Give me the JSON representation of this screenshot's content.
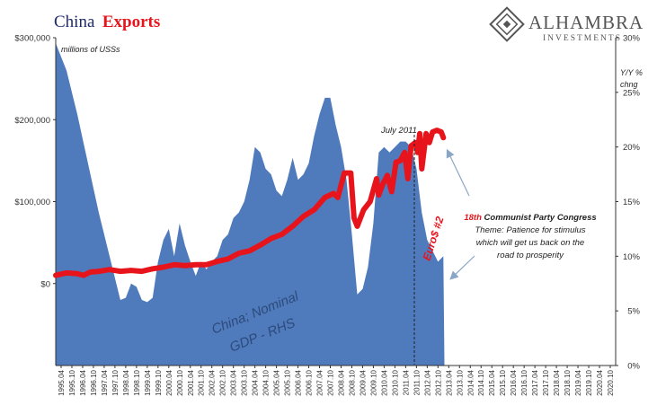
{
  "title": {
    "part1": "China",
    "part2": "Exports"
  },
  "logo": {
    "name": "ALHAMBRA",
    "sub": "INVESTMENTS"
  },
  "colors": {
    "exports": "#e8141c",
    "gdp": "#4f7bbd",
    "title_dark": "#1f2a6b"
  },
  "chart_data": {
    "type": "line+area",
    "left_axis": {
      "label": "millions of USSs",
      "ticks": [
        "$300,000",
        "$200,000",
        "$100,000",
        "$0"
      ],
      "tick_values": [
        300000,
        200000,
        100000,
        0
      ],
      "range": [
        -100000,
        300000
      ]
    },
    "right_axis": {
      "label_line1": "Y/Y %",
      "label_line2": "chng",
      "ticks": [
        "30%",
        "25%",
        "20%",
        "15%",
        "10%",
        "5%",
        "0%"
      ],
      "tick_values": [
        30,
        25,
        20,
        15,
        10,
        5,
        0
      ],
      "range": [
        0,
        30
      ]
    },
    "x_range": [
      1995.0,
      2021.0
    ],
    "x_ticks": [
      "1995.04",
      "1995.10",
      "1996.04",
      "1996.10",
      "1997.04",
      "1997.10",
      "1998.04",
      "1998.10",
      "1999.04",
      "1999.10",
      "2000.04",
      "2000.10",
      "2001.04",
      "2001.10",
      "2002.04",
      "2002.10",
      "2003.04",
      "2003.10",
      "2004.04",
      "2004.10",
      "2005.04",
      "2005.10",
      "2006.04",
      "2006.10",
      "2007.04",
      "2007.10",
      "2008.04",
      "2008.10",
      "2009.04",
      "2009.10",
      "2010.04",
      "2010.10",
      "2011.04",
      "2011.10",
      "2012.04",
      "2012.10",
      "2013.04",
      "2013.10",
      "2014.04",
      "2014.10",
      "2015.04",
      "2015.10",
      "2016.04",
      "2016.10",
      "2017.04",
      "2017.10",
      "2018.04",
      "2018.10",
      "2019.04",
      "2019.10",
      "2020.04",
      "2020.10"
    ],
    "series": [
      {
        "name": "China Exports",
        "axis": "left",
        "x": [
          1995.0,
          1995.5,
          1996.0,
          1996.3,
          1996.6,
          1997.0,
          1997.5,
          1998.0,
          1998.5,
          1999.0,
          1999.5,
          2000.0,
          2000.5,
          2001.0,
          2001.5,
          2002.0,
          2002.5,
          2003.0,
          2003.5,
          2004.0,
          2004.5,
          2005.0,
          2005.5,
          2006.0,
          2006.5,
          2007.0,
          2007.5,
          2007.9,
          2008.1,
          2008.4,
          2008.7,
          2008.85,
          2009.0,
          2009.3,
          2009.6,
          2009.9,
          2010.0,
          2010.2,
          2010.4,
          2010.6,
          2010.8,
          2011.0,
          2011.2,
          2011.35,
          2011.5,
          2011.7,
          2011.8,
          2011.9,
          2012.0,
          2012.2,
          2012.35,
          2012.5,
          2012.7,
          2012.9,
          2013.0
        ],
        "values": [
          10000,
          13000,
          12000,
          10000,
          14000,
          15000,
          17000,
          15000,
          16000,
          15000,
          18000,
          20000,
          23000,
          22000,
          23000,
          23000,
          27000,
          30000,
          37000,
          40000,
          47000,
          55000,
          60000,
          70000,
          82000,
          90000,
          105000,
          110000,
          105000,
          135000,
          135000,
          80000,
          70000,
          90000,
          100000,
          128000,
          108000,
          122000,
          132000,
          112000,
          148000,
          150000,
          160000,
          128000,
          168000,
          172000,
          160000,
          183000,
          140000,
          183000,
          172000,
          185000,
          187000,
          185000,
          178000
        ]
      },
      {
        "name": "China; Nominal GDP - RHS",
        "axis": "right",
        "x": [
          1995.0,
          1995.5,
          1996.0,
          1996.5,
          1997.0,
          1997.5,
          1998.0,
          1998.25,
          1998.5,
          1998.75,
          1999.0,
          1999.25,
          1999.5,
          1999.75,
          2000.0,
          2000.25,
          2000.5,
          2000.75,
          2001.0,
          2001.25,
          2001.5,
          2001.75,
          2002.0,
          2002.25,
          2002.5,
          2002.75,
          2003.0,
          2003.25,
          2003.5,
          2003.75,
          2004.0,
          2004.25,
          2004.5,
          2004.75,
          2005.0,
          2005.25,
          2005.5,
          2005.75,
          2006.0,
          2006.25,
          2006.5,
          2006.75,
          2007.0,
          2007.25,
          2007.5,
          2007.75,
          2008.0,
          2008.25,
          2008.5,
          2008.75,
          2009.0,
          2009.25,
          2009.5,
          2009.75,
          2010.0,
          2010.25,
          2010.5,
          2010.75,
          2011.0,
          2011.25,
          2011.5,
          2011.75,
          2012.0,
          2012.25,
          2012.5,
          2012.75,
          2013.0,
          2013.05
        ],
        "values": [
          29.5,
          27,
          23,
          18.5,
          14,
          10,
          6,
          6.2,
          7.5,
          7.2,
          6,
          5.8,
          6.2,
          9.5,
          11.5,
          12.5,
          10,
          13,
          11,
          9.5,
          8.2,
          9.5,
          8.8,
          9.5,
          10,
          11.5,
          12,
          13.5,
          14,
          15,
          17,
          20,
          19.5,
          18,
          17.5,
          16,
          15.5,
          17,
          19,
          17,
          17.5,
          18.5,
          21,
          23,
          24.5,
          24.5,
          22,
          20,
          17,
          12,
          6.5,
          7,
          9,
          13,
          19.5,
          20,
          19.5,
          20,
          20.5,
          20.5,
          20,
          18,
          14,
          11.5,
          10.5,
          9.5,
          10,
          0
        ]
      }
    ],
    "annotations": {
      "july": "July 2011",
      "congress_red": "18th",
      "congress_rest": " Communist Party Congress",
      "theme1": "Theme: Patience for stimulus",
      "theme2": "which will get us back on the",
      "theme3": "road to prosperity",
      "euro": "Euro$ #2",
      "gdp1": "China; Nominal",
      "gdp2": "GDP - RHS"
    }
  }
}
